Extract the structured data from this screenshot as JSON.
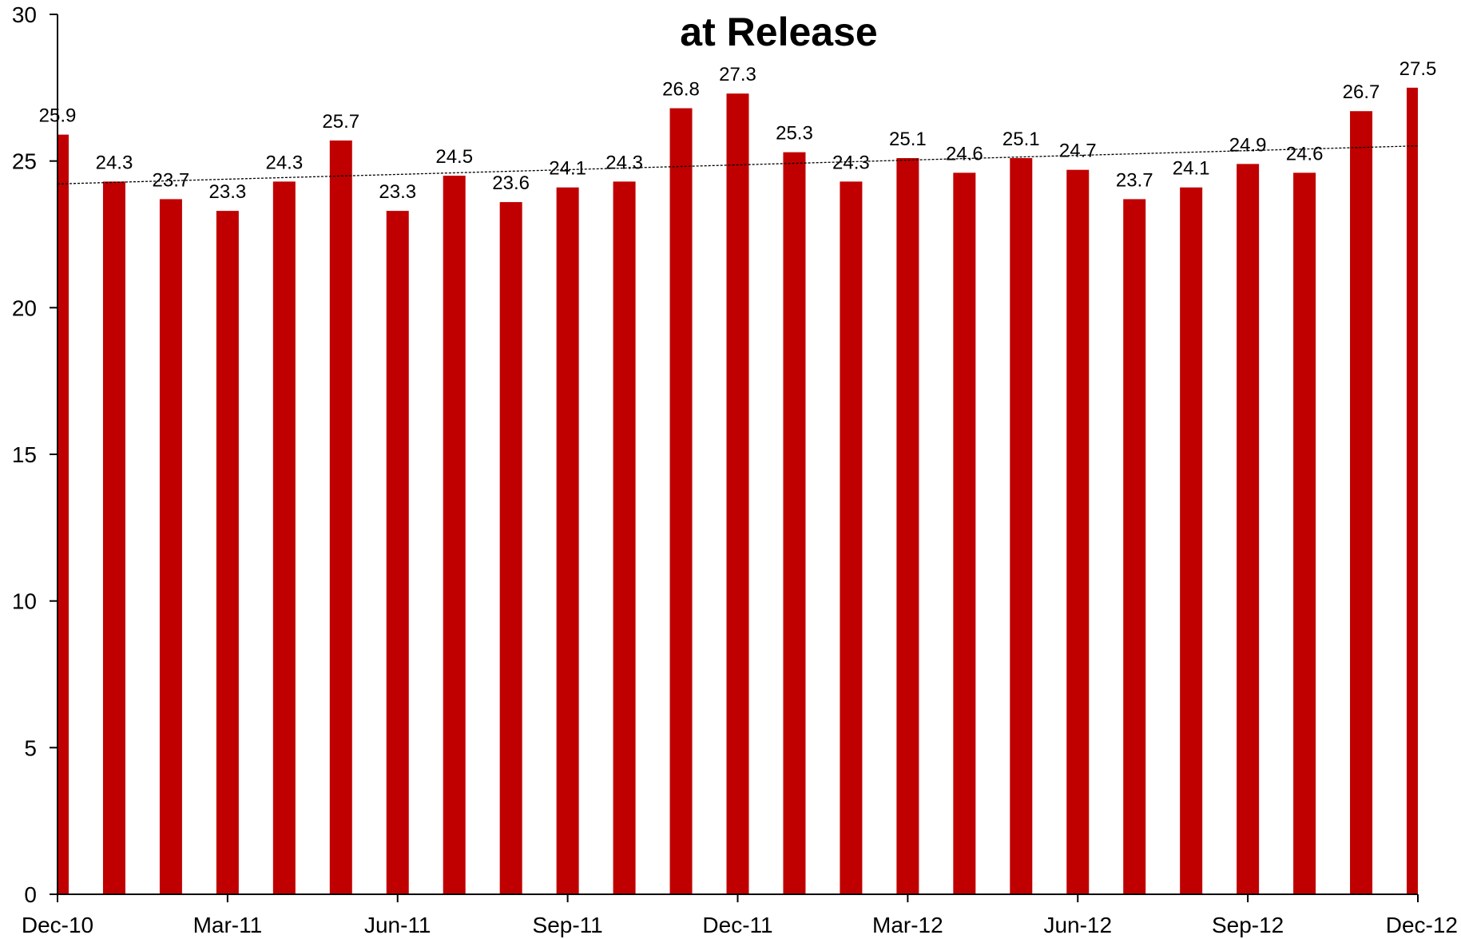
{
  "chart_data": {
    "type": "bar",
    "title_lines": [
      "",
      "at Release"
    ],
    "categories": [
      "Dec-10",
      "Jan-11",
      "Feb-11",
      "Mar-11",
      "Apr-11",
      "May-11",
      "Jun-11",
      "Jul-11",
      "Aug-11",
      "Sep-11",
      "Oct-11",
      "Nov-11",
      "Dec-11",
      "Jan-12",
      "Feb-12",
      "Mar-12",
      "Apr-12",
      "May-12",
      "Jun-12",
      "Jul-12",
      "Aug-12",
      "Sep-12",
      "Oct-12",
      "Nov-12",
      "Dec-12"
    ],
    "x_tick_labels": [
      "Dec-10",
      "Mar-11",
      "Jun-11",
      "Sep-11",
      "Dec-11",
      "Mar-12",
      "Jun-12",
      "Sep-12",
      "Dec-12"
    ],
    "values": [
      25.9,
      24.3,
      23.7,
      23.3,
      24.3,
      25.7,
      23.3,
      24.5,
      23.6,
      24.1,
      24.3,
      26.8,
      27.3,
      25.3,
      24.3,
      25.1,
      24.6,
      25.1,
      24.7,
      23.7,
      24.1,
      24.9,
      24.6,
      26.7,
      27.5
    ],
    "data_labels": [
      "25.9",
      "24.3",
      "23.7",
      "23.3",
      "24.3",
      "25.7",
      "23.3",
      "24.5",
      "23.6",
      "24.1",
      "24.3",
      "26.8",
      "27.3",
      "25.3",
      "24.3",
      "25.1",
      "24.6",
      "25.1",
      "24.7",
      "23.7",
      "24.1",
      "24.9",
      "24.6",
      "26.7",
      "27.5"
    ],
    "y_tick_labels": [
      "0",
      "5",
      "10",
      "15",
      "20",
      "25",
      "30"
    ],
    "ylim": [
      0,
      30
    ],
    "y_tick_step": 5,
    "xlabel": "",
    "ylabel": "",
    "bar_color": "#C00000",
    "trendline": {
      "type": "linear",
      "style": "dotted",
      "color": "#000000"
    },
    "grid": false,
    "legend": "none"
  }
}
